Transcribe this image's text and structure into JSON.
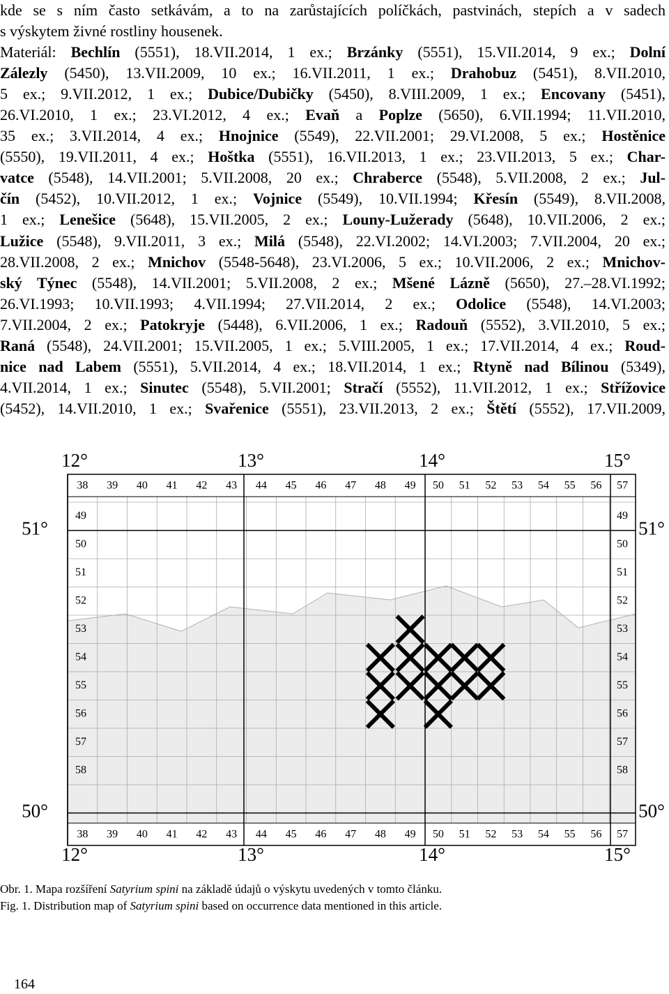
{
  "body": {
    "lines": [
      [
        "kde se s ním často setkávám, a to na zarůstajících políčkách, pastvinách, stepích a v sadech"
      ],
      [
        "s výskytem živné rostliny housenek."
      ],
      [
        "Materiál: ",
        {
          "b": "Bechlín"
        },
        " (5551), 18.VII.2014, 1 ex.; ",
        {
          "b": "Brzánky"
        },
        " (5551), 15.VII.2014, 9 ex.; ",
        {
          "b": "Dolní"
        }
      ],
      [
        {
          "b": "Zálezly"
        },
        " (5450), 13.VII.2009, 10 ex.; 16.VII.2011, 1 ex.; ",
        {
          "b": "Drahobuz"
        },
        " (5451), 8.VII.2010,"
      ],
      [
        "5 ex.; 9.VII.2012, 1 ex.; ",
        {
          "b": "Dubice/Dubičky"
        },
        " (5450), 8.VIII.2009, 1 ex.; ",
        {
          "b": "Encovany"
        },
        " (5451),"
      ],
      [
        "26.VI.2010, 1 ex.; 23.VI.2012, 4 ex.; ",
        {
          "b": "Evaň"
        },
        " a ",
        {
          "b": "Poplze"
        },
        " (5650), 6.VII.1994; 11.VII.2010,"
      ],
      [
        "35 ex.; 3.VII.2014, 4 ex.; ",
        {
          "b": "Hnojnice"
        },
        " (5549), 22.VII.2001; 29.VI.2008, 5 ex.; ",
        {
          "b": "Hostěnice"
        }
      ],
      [
        "(5550), 19.VII.2011, 4 ex.; ",
        {
          "b": "Hoštka"
        },
        " (5551), 16.VII.2013, 1 ex.; 23.VII.2013, 5 ex.; ",
        {
          "b": "Char-"
        }
      ],
      [
        {
          "b": "vatce"
        },
        " (5548), 14.VII.2001; 5.VII.2008, 20 ex.; ",
        {
          "b": "Chraberce"
        },
        " (5548), 5.VII.2008, 2 ex.; ",
        {
          "b": "Jul-"
        }
      ],
      [
        {
          "b": "čín"
        },
        " (5452), 10.VII.2012, 1 ex.; ",
        {
          "b": "Vojnice"
        },
        " (5549), 10.VII.1994; ",
        {
          "b": "Křesín"
        },
        " (5549), 8.VII.2008,"
      ],
      [
        "1 ex.; ",
        {
          "b": "Lenešice"
        },
        " (5648), 15.VII.2005, 2 ex.; ",
        {
          "b": "Louny-Lužerady"
        },
        " (5648), 10.VII.2006, 2 ex.;"
      ],
      [
        {
          "b": "Lužice"
        },
        " (5548), 9.VII.2011, 3 ex.; ",
        {
          "b": "Milá"
        },
        " (5548), 22.VI.2002; 14.VI.2003; 7.VII.2004, 20 ex.;"
      ],
      [
        "28.VII.2008, 2 ex.; ",
        {
          "b": "Mnichov"
        },
        " (5548-5648), 23.VI.2006, 5 ex.; 10.VII.2006, 2 ex.; ",
        {
          "b": "Mnichov-"
        }
      ],
      [
        {
          "b": "ský Týnec"
        },
        " (5548), 14.VII.2001; 5.VII.2008, 2 ex.; ",
        {
          "b": "Mšené Lázně"
        },
        " (5650), 27.–28.VI.1992;"
      ],
      [
        "26.VI.1993; 10.VII.1993; 4.VII.1994; 27.VII.2014, 2 ex.; ",
        {
          "b": "Odolice"
        },
        " (5548), 14.VI.2003;"
      ],
      [
        "7.VII.2004, 2 ex.; ",
        {
          "b": "Patokryje"
        },
        " (5448), 6.VII.2006, 1 ex.; ",
        {
          "b": "Radouň"
        },
        " (5552), 3.VII.2010, 5 ex.;"
      ],
      [
        {
          "b": "Raná"
        },
        " (5548), 24.VII.2001; 15.VII.2005, 1 ex.; 5.VIII.2005, 1 ex.; 17.VII.2014, 4 ex.; ",
        {
          "b": "Roud-"
        }
      ],
      [
        {
          "b": "nice nad Labem"
        },
        " (5551), 5.VII.2014, 4 ex.; 18.VII.2014, 1 ex.; ",
        {
          "b": "Rtyně nad Bílinou"
        },
        " (5349),"
      ],
      [
        "4.VII.2014, 1 ex.; ",
        {
          "b": "Sinutec"
        },
        " (5548), 5.VII.2001; ",
        {
          "b": "Stračí"
        },
        " (5552), 11.VII.2012, 1 ex.; ",
        {
          "b": "Střížovice"
        }
      ],
      [
        "(5452), 14.VII.2010, 1 ex.; ",
        {
          "b": "Svařenice"
        },
        " (5551), 23.VII.2013, 2 ex.; ",
        {
          "b": "Štětí"
        },
        " (5552), 17.VII.2009,"
      ]
    ]
  },
  "map": {
    "longitudes": [
      "12°",
      "13°",
      "14°",
      "15°"
    ],
    "latitudes": [
      "51°",
      "50°"
    ],
    "columns": [
      "38",
      "39",
      "40",
      "41",
      "42",
      "43",
      "44",
      "45",
      "46",
      "47",
      "48",
      "49",
      "50",
      "51",
      "52",
      "53",
      "54",
      "55",
      "56",
      "57"
    ],
    "rows": [
      "49",
      "50",
      "51",
      "52",
      "53",
      "54",
      "55",
      "56",
      "57",
      "58"
    ]
  },
  "caption": {
    "lines": [
      [
        "Obr. 1. Mapa rozšíření ",
        {
          "i": "Satyrium spini"
        },
        " na základě údajů o výskytu uvedených v tomto článku."
      ],
      [
        "Fig. 1. Distribution map of ",
        {
          "i": "Satyrium spini"
        },
        " based on occurrence data mentioned in this article."
      ]
    ]
  },
  "page_number": "164"
}
